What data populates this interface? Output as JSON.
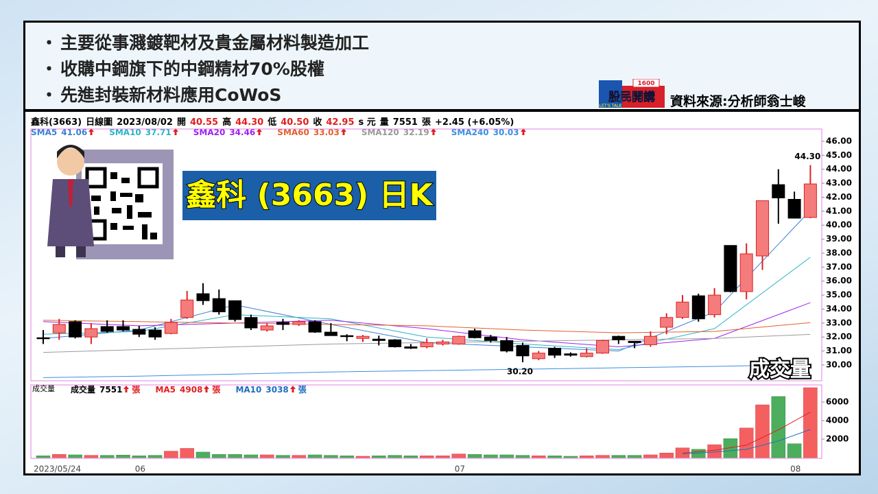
{
  "bullets": [
    "主要從事濺鍍靶材及貴金屬材料製造加工",
    "收購中鋼旗下的中鋼精材70%股權",
    "先進封裝新材料應用CoWoS"
  ],
  "logo": {
    "title": "股民開講",
    "number": "1600",
    "tag": "LET'S TALK"
  },
  "source": "資料來源:分析師翁士峻",
  "chart_data": [
    {
      "type": "candlestick",
      "title": "鑫科 (3663) 日K",
      "info": [
        {
          "text": "鑫科(3663)",
          "color": "#000000"
        },
        {
          "text": "日線圖",
          "color": "#000000"
        },
        {
          "text": "2023/08/02",
          "color": "#000000"
        },
        {
          "text": "開",
          "color": "#000000"
        },
        {
          "text": "40.55",
          "color": "#e02020"
        },
        {
          "text": "高",
          "color": "#000000"
        },
        {
          "text": "44.30",
          "color": "#e02020"
        },
        {
          "text": "低",
          "color": "#000000"
        },
        {
          "text": "40.50",
          "color": "#e02020"
        },
        {
          "text": "收",
          "color": "#000000"
        },
        {
          "text": "42.95",
          "color": "#e02020"
        },
        {
          "text": "s 元",
          "color": "#000000"
        },
        {
          "text": "量",
          "color": "#000000"
        },
        {
          "text": "7551",
          "color": "#000000"
        },
        {
          "text": "張",
          "color": "#000000"
        },
        {
          "text": "+2.45 (+6.05%)",
          "color": "#000000"
        }
      ],
      "categories": [
        "2023/05/24",
        null,
        null,
        null,
        null,
        null,
        "06",
        null,
        null,
        null,
        null,
        null,
        null,
        null,
        null,
        null,
        null,
        null,
        null,
        null,
        null,
        null,
        null,
        null,
        null,
        null,
        "07",
        null,
        null,
        null,
        null,
        null,
        null,
        null,
        null,
        null,
        null,
        null,
        null,
        null,
        null,
        null,
        null,
        null,
        null,
        null,
        null,
        "08",
        null
      ],
      "open": [
        31.95,
        32.3,
        33.1,
        32.0,
        32.75,
        32.75,
        32.55,
        32.5,
        32.25,
        33.4,
        35.1,
        34.75,
        34.6,
        33.4,
        32.5,
        33.05,
        32.9,
        33.1,
        32.35,
        32.1,
        31.9,
        31.85,
        31.8,
        31.3,
        31.3,
        31.5,
        31.5,
        32.45,
        32.0,
        31.75,
        31.4,
        30.45,
        31.2,
        30.8,
        30.6,
        30.85,
        32.05,
        31.7,
        31.45,
        32.7,
        33.4,
        34.95,
        33.6,
        38.55,
        35.25,
        37.8,
        42.9,
        41.85,
        40.55
      ],
      "high": [
        32.5,
        33.3,
        33.2,
        33.0,
        33.2,
        33.2,
        32.8,
        32.7,
        33.3,
        35.3,
        35.85,
        35.4,
        34.6,
        33.6,
        33.0,
        33.3,
        33.2,
        33.2,
        33.0,
        32.2,
        32.15,
        32.1,
        31.85,
        31.5,
        31.9,
        31.8,
        32.1,
        32.6,
        32.15,
        32.0,
        31.6,
        31.0,
        31.3,
        30.9,
        31.2,
        31.8,
        32.1,
        31.7,
        32.4,
        33.7,
        35.0,
        35.1,
        35.5,
        38.55,
        38.7,
        41.75,
        44.0,
        42.4,
        44.3
      ],
      "low": [
        31.5,
        31.8,
        31.9,
        31.5,
        32.3,
        32.4,
        32.0,
        31.8,
        32.2,
        33.3,
        34.3,
        33.6,
        33.1,
        32.5,
        32.4,
        32.5,
        32.8,
        32.3,
        32.1,
        31.7,
        31.65,
        31.4,
        31.25,
        31.15,
        31.2,
        31.4,
        31.45,
        31.9,
        31.6,
        30.9,
        30.2,
        30.35,
        30.5,
        30.6,
        30.55,
        30.8,
        31.5,
        31.2,
        31.3,
        32.2,
        33.3,
        33.1,
        33.4,
        35.2,
        34.7,
        36.8,
        40.1,
        40.5,
        40.5
      ],
      "close": [
        31.9,
        32.9,
        32.0,
        32.6,
        32.4,
        32.5,
        32.2,
        32.0,
        33.05,
        34.65,
        34.6,
        33.8,
        33.25,
        32.65,
        32.8,
        32.9,
        33.1,
        32.35,
        32.1,
        32.05,
        32.05,
        31.75,
        31.3,
        31.2,
        31.6,
        31.65,
        32.05,
        31.95,
        31.75,
        31.0,
        30.65,
        30.85,
        30.7,
        30.7,
        30.85,
        31.75,
        31.8,
        31.6,
        32.05,
        33.4,
        34.5,
        33.3,
        35.0,
        35.25,
        37.95,
        41.75,
        41.95,
        40.5,
        42.95
      ],
      "up_color": "#f47c7c",
      "up_edge": "#e02020",
      "down_color": "#000000",
      "series": [
        {
          "name": "SMA5",
          "color": "#3a7fd5",
          "legend_value": 41.06,
          "x": [
            0,
            6,
            12,
            18,
            24,
            30,
            36,
            42,
            48
          ],
          "values": [
            31.9,
            32.5,
            34.3,
            32.9,
            31.6,
            31.3,
            31.0,
            33.8,
            41.06
          ]
        },
        {
          "name": "SMA10",
          "color": "#28b4c8",
          "legend_value": 37.71,
          "x": [
            0,
            6,
            12,
            18,
            24,
            30,
            36,
            42,
            48
          ],
          "values": [
            32.2,
            32.4,
            33.6,
            33.3,
            32.0,
            31.5,
            31.1,
            32.6,
            37.71
          ]
        },
        {
          "name": "SMA20",
          "color": "#a020f0",
          "legend_value": 34.46,
          "x": [
            0,
            6,
            12,
            18,
            24,
            30,
            36,
            42,
            48
          ],
          "values": [
            33.1,
            32.8,
            33.0,
            33.2,
            32.6,
            31.8,
            31.3,
            31.9,
            34.46
          ]
        },
        {
          "name": "SMA60",
          "color": "#e0602a",
          "legend_value": 33.03,
          "x": [
            0,
            6,
            12,
            18,
            24,
            30,
            36,
            42,
            48
          ],
          "values": [
            33.2,
            33.1,
            33.0,
            32.9,
            32.8,
            32.5,
            32.3,
            32.4,
            33.03
          ]
        },
        {
          "name": "SMA120",
          "color": "#999999",
          "legend_value": 32.19,
          "x": [
            0,
            6,
            12,
            18,
            24,
            30,
            36,
            42,
            48
          ],
          "values": [
            30.9,
            31.1,
            31.3,
            31.5,
            31.6,
            31.7,
            31.8,
            31.9,
            32.19
          ]
        },
        {
          "name": "SMA240",
          "color": "#3a8ee0",
          "legend_value": 30.03,
          "x": [
            0,
            6,
            12,
            18,
            24,
            30,
            36,
            42,
            48
          ],
          "values": [
            29.1,
            29.2,
            29.35,
            29.5,
            29.6,
            29.7,
            29.8,
            29.9,
            30.03
          ]
        }
      ],
      "annotations": [
        {
          "x": 48,
          "value": 44.3,
          "label": "44.30"
        },
        {
          "x": 30,
          "value": 30.2,
          "label": "30.20"
        }
      ],
      "ylim": [
        28.87,
        46.88
      ],
      "yticks": [
        {
          "value": 30,
          "label": "30.00"
        },
        {
          "value": 31,
          "label": "31.00"
        },
        {
          "value": 32,
          "label": "32.00"
        },
        {
          "value": 33,
          "label": "33.00"
        },
        {
          "value": 34,
          "label": "34.00"
        },
        {
          "value": 35,
          "label": "35.00"
        },
        {
          "value": 36,
          "label": "36.00"
        },
        {
          "value": 37,
          "label": "37.00"
        },
        {
          "value": 38,
          "label": "38.00"
        },
        {
          "value": 39,
          "label": "39.00"
        },
        {
          "value": 40,
          "label": "40.00"
        },
        {
          "value": 41,
          "label": "41.00"
        },
        {
          "value": 42,
          "label": "42.00"
        },
        {
          "value": 43,
          "label": "43.00"
        },
        {
          "value": 44,
          "label": "44.00"
        },
        {
          "value": 45,
          "label": "45.00"
        },
        {
          "value": 46,
          "label": "46.00"
        }
      ]
    },
    {
      "type": "bar",
      "title": "成交量",
      "panel_label": "成交量",
      "unit": "張",
      "up_color": "#f46060",
      "down_color": "#4cae5c",
      "series": [
        {
          "name": "成交量",
          "color": "#e02020",
          "legend_value": 7551,
          "values": [
            200,
            350,
            300,
            250,
            250,
            280,
            200,
            250,
            700,
            1000,
            600,
            350,
            350,
            300,
            300,
            250,
            250,
            300,
            250,
            200,
            150,
            200,
            250,
            200,
            200,
            200,
            400,
            350,
            300,
            300,
            250,
            200,
            200,
            150,
            200,
            250,
            250,
            250,
            300,
            500,
            1050,
            900,
            1400,
            2050,
            3200,
            5700,
            6600,
            1500,
            7551
          ]
        },
        {
          "name": "MA5",
          "color": "#e02020",
          "legend_value": 4908,
          "x": [
            40,
            42,
            44,
            46,
            48
          ],
          "values": [
            500,
            800,
            1350,
            3000,
            4908
          ]
        },
        {
          "name": "MA10",
          "color": "#1e6fc0",
          "legend_value": 3038,
          "x": [
            40,
            42,
            44,
            46,
            48
          ],
          "values": [
            400,
            600,
            900,
            1800,
            3038
          ]
        }
      ],
      "ylim": [
        0,
        7850
      ],
      "yticks": [
        2000,
        4000,
        6000
      ]
    }
  ]
}
